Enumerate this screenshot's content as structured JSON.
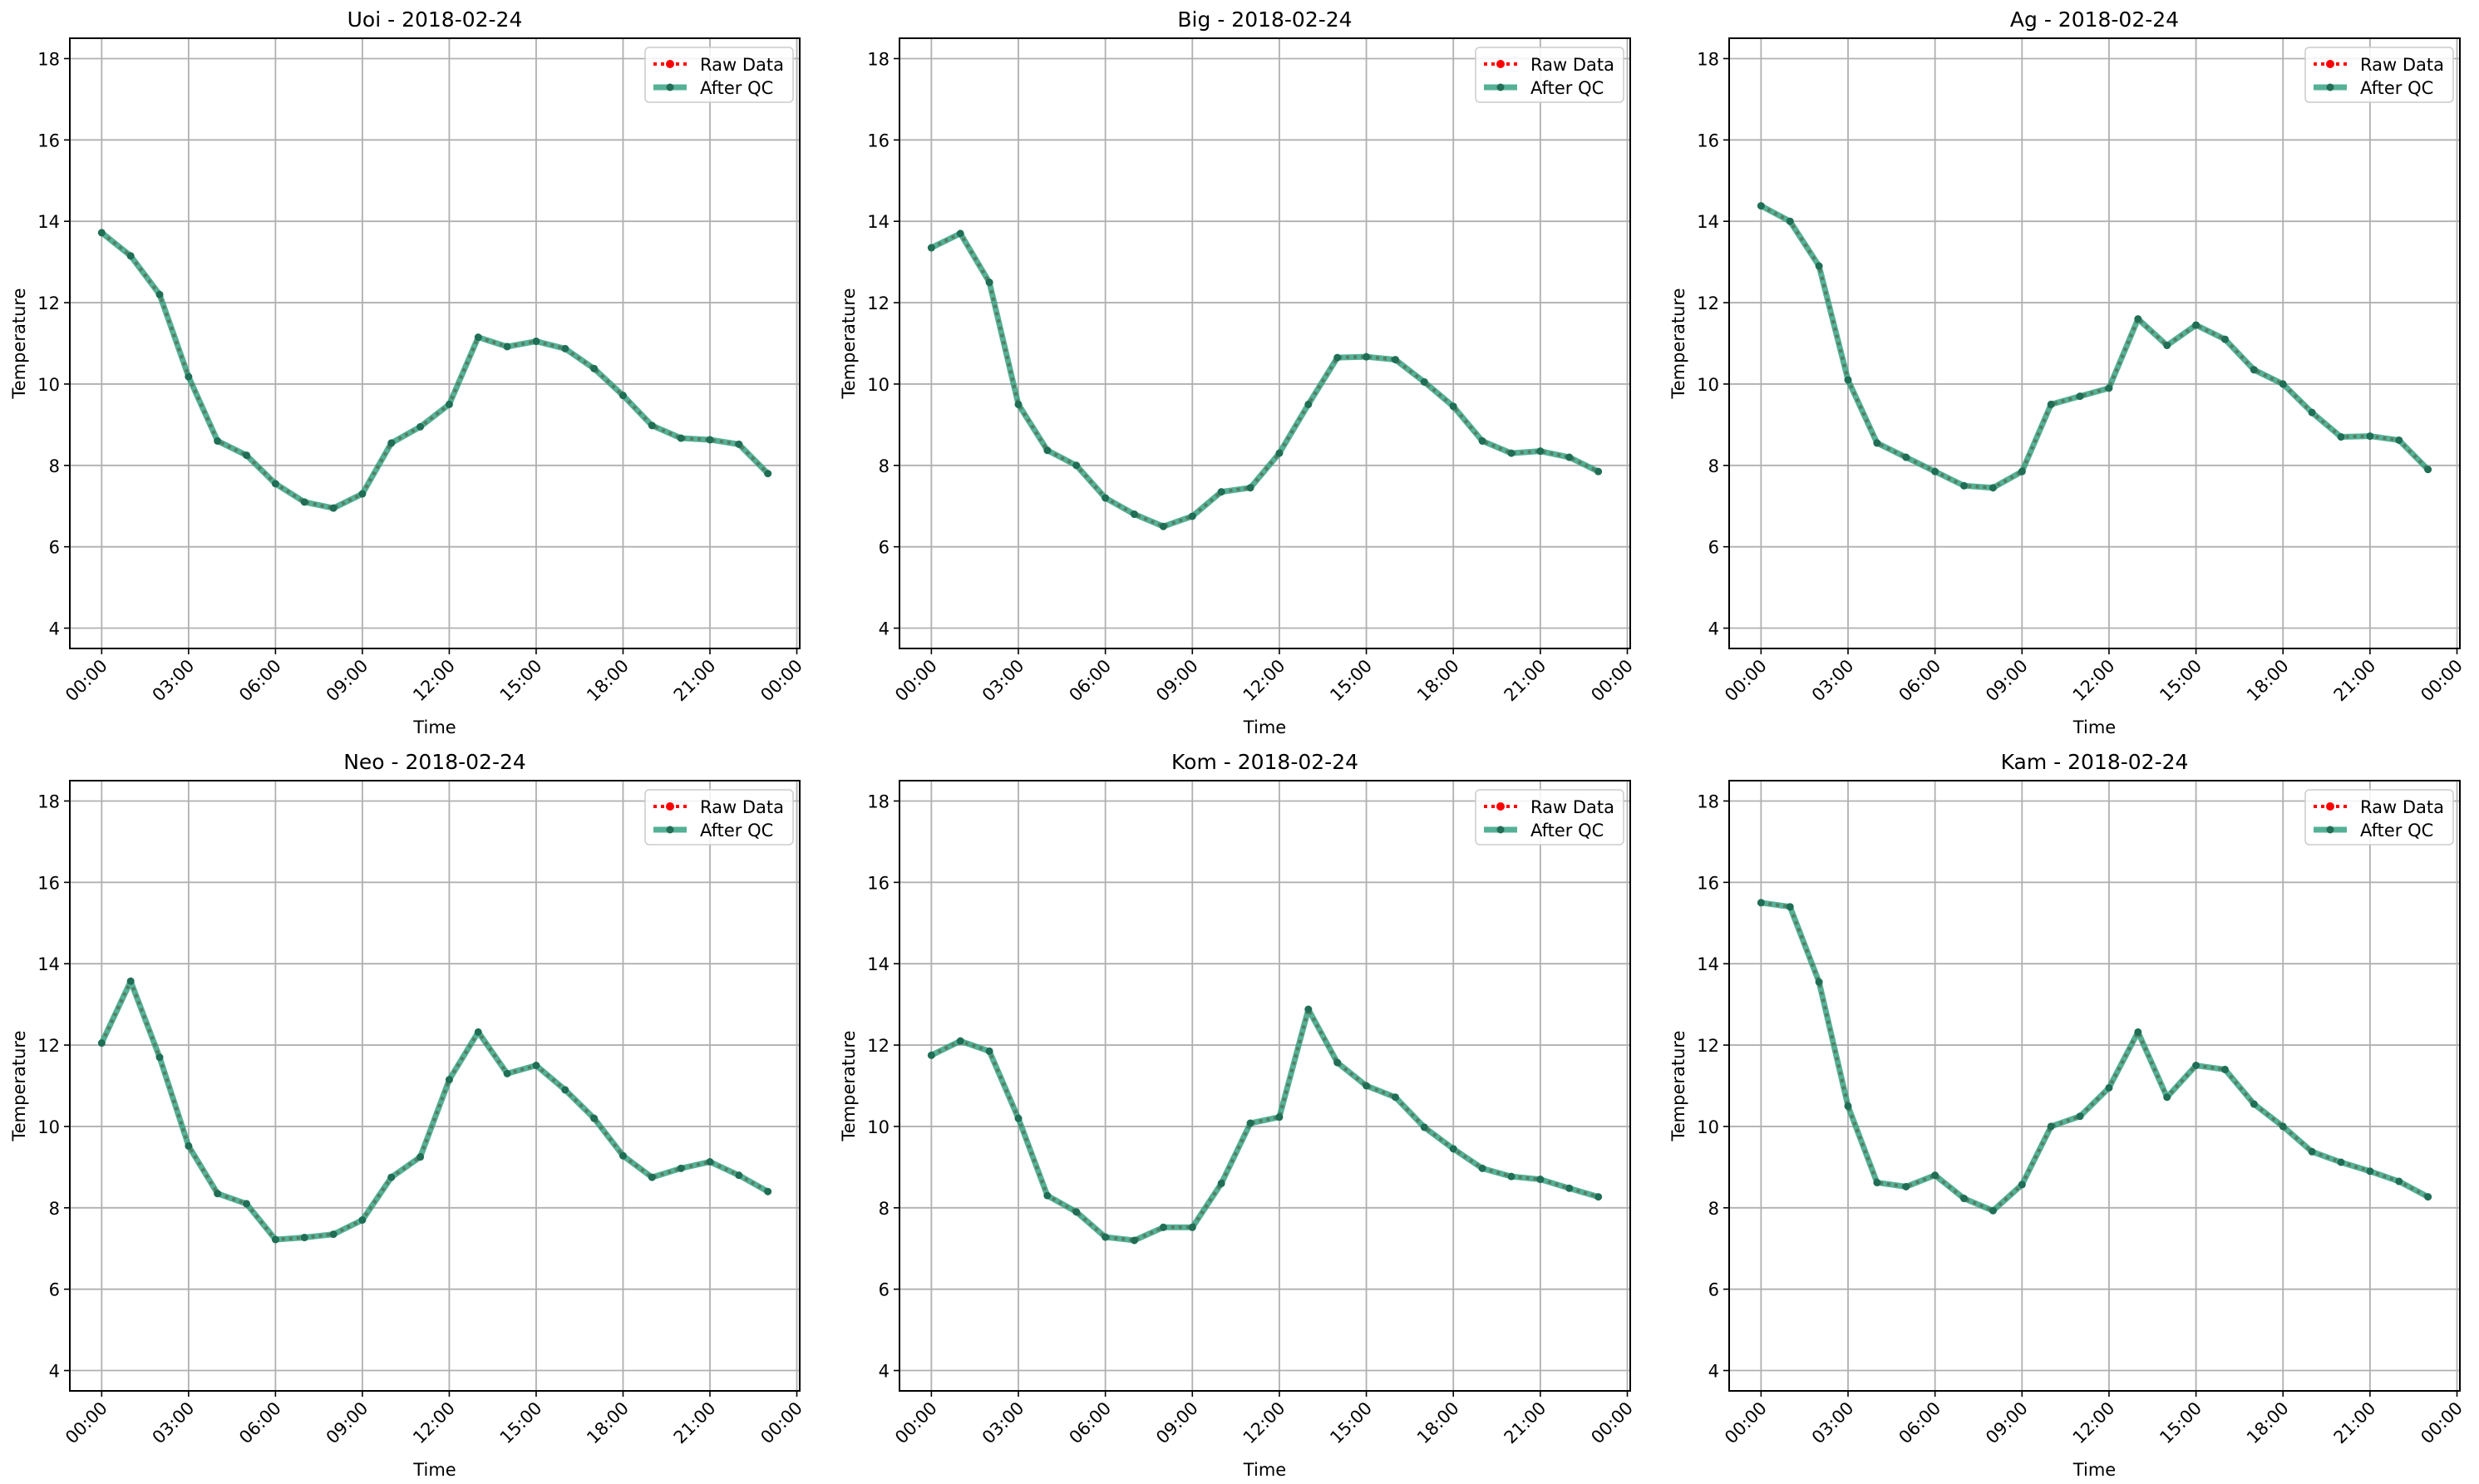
{
  "chart_data": [
    {
      "type": "line",
      "title": "Uoi - 2018-02-24",
      "xlabel": "Time",
      "ylabel": "Temperature",
      "values": [
        13.72,
        13.15,
        12.2,
        10.18,
        8.6,
        8.25,
        7.55,
        7.1,
        6.95,
        7.3,
        8.55,
        8.95,
        9.5,
        11.15,
        10.92,
        11.05,
        10.87,
        10.38,
        9.72,
        8.98,
        8.67,
        8.63,
        8.52,
        7.8
      ]
    },
    {
      "type": "line",
      "title": "Big - 2018-02-24",
      "xlabel": "Time",
      "ylabel": "Temperature",
      "values": [
        13.35,
        13.7,
        12.5,
        9.5,
        8.37,
        8.0,
        7.2,
        6.8,
        6.5,
        6.75,
        7.35,
        7.45,
        8.3,
        9.5,
        10.65,
        10.67,
        10.6,
        10.05,
        9.45,
        8.6,
        8.3,
        8.35,
        8.2,
        7.85
      ]
    },
    {
      "type": "line",
      "title": "Ag - 2018-02-24",
      "xlabel": "Time",
      "ylabel": "Temperature",
      "values": [
        14.38,
        14.0,
        12.9,
        10.1,
        8.55,
        8.2,
        7.85,
        7.5,
        7.45,
        7.85,
        9.5,
        9.7,
        9.9,
        11.6,
        10.95,
        11.45,
        11.1,
        10.35,
        10.0,
        9.3,
        8.7,
        8.72,
        8.62,
        7.9
      ]
    },
    {
      "type": "line",
      "title": "Neo - 2018-02-24",
      "xlabel": "Time",
      "ylabel": "Temperature",
      "values": [
        12.05,
        13.57,
        11.7,
        9.52,
        8.35,
        8.1,
        7.22,
        7.27,
        7.35,
        7.7,
        8.75,
        9.25,
        11.15,
        12.32,
        11.3,
        11.5,
        10.9,
        10.2,
        9.28,
        8.75,
        8.97,
        9.13,
        8.8,
        8.4
      ]
    },
    {
      "type": "line",
      "title": "Kom - 2018-02-24",
      "xlabel": "Time",
      "ylabel": "Temperature",
      "values": [
        11.75,
        12.1,
        11.85,
        10.2,
        8.3,
        7.9,
        7.28,
        7.2,
        7.52,
        7.52,
        8.6,
        10.08,
        10.23,
        12.88,
        11.57,
        11.0,
        10.72,
        9.98,
        9.45,
        8.97,
        8.77,
        8.7,
        8.48,
        8.27
      ]
    },
    {
      "type": "line",
      "title": "Kam - 2018-02-24",
      "xlabel": "Time",
      "ylabel": "Temperature",
      "values": [
        15.5,
        15.4,
        13.55,
        10.5,
        8.62,
        8.52,
        8.8,
        8.23,
        7.93,
        8.57,
        10.0,
        10.25,
        10.95,
        12.32,
        10.72,
        11.5,
        11.4,
        10.55,
        10.0,
        9.38,
        9.12,
        8.9,
        8.65,
        8.27
      ]
    }
  ],
  "shared": {
    "x_hours": [
      0,
      1,
      2,
      3,
      4,
      5,
      6,
      7,
      8,
      9,
      10,
      11,
      12,
      13,
      14,
      15,
      16,
      17,
      18,
      19,
      20,
      21,
      22,
      23
    ],
    "xlim_hours": [
      -1.1,
      24.1
    ],
    "ylim": [
      3.5,
      18.5
    ],
    "yticks": [
      4,
      6,
      8,
      10,
      12,
      14,
      16,
      18
    ],
    "xticks_hours": [
      0,
      3,
      6,
      9,
      12,
      15,
      18,
      21,
      24
    ],
    "xtick_labels": [
      "00:00",
      "03:00",
      "06:00",
      "09:00",
      "12:00",
      "15:00",
      "18:00",
      "21:00",
      "00:00"
    ],
    "grid": true,
    "legend_placement": "top-right",
    "legend": [
      "Raw Data",
      "After QC"
    ],
    "colors": {
      "raw": "#ff0000",
      "qc": "#2a9d7c",
      "qc_marker": "#1f6e55",
      "grid": "#b0b0b0"
    }
  }
}
